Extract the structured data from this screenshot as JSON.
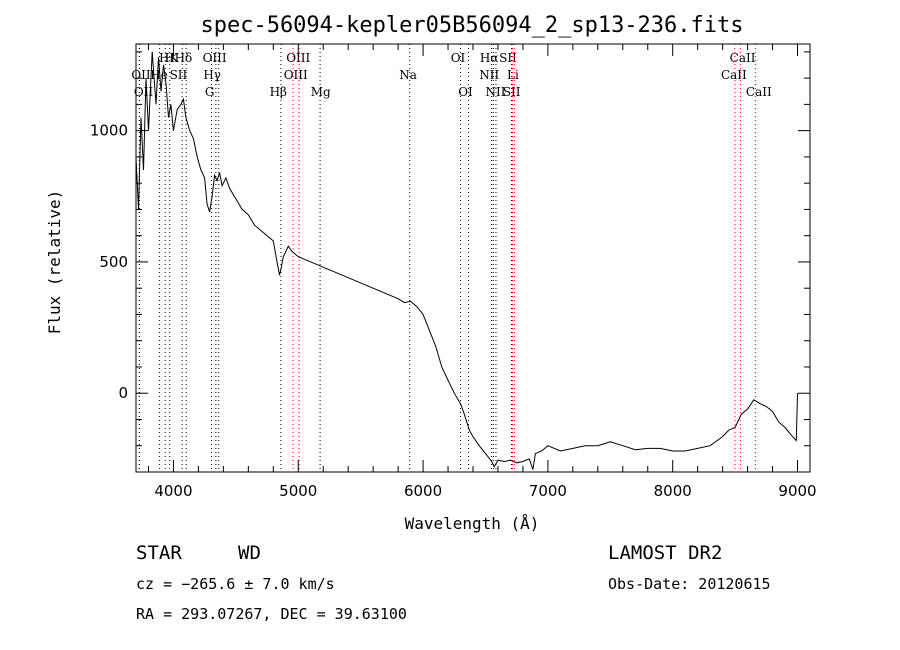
{
  "chart_data": {
    "type": "line",
    "title": "spec-56094-kepler05B56094_2_sp13-236.fits",
    "xlabel": "Wavelength (Å)",
    "ylabel": "Flux (relative)",
    "xlim": [
      3700,
      9100
    ],
    "ylim": [
      -300,
      1330
    ],
    "x_ticks": [
      4000,
      5000,
      6000,
      7000,
      8000,
      9000
    ],
    "y_ticks": [
      0,
      500,
      1000
    ],
    "grid": false,
    "series": [
      {
        "x": [
          3700,
          3720,
          3740,
          3760,
          3780,
          3800,
          3830,
          3860,
          3880,
          3900,
          3920,
          3940,
          3960,
          3980,
          4000,
          4030,
          4060,
          4080,
          4100,
          4130,
          4160,
          4190,
          4220,
          4250,
          4270,
          4290,
          4310,
          4330,
          4350,
          4370,
          4390,
          4420,
          4450,
          4500,
          4550,
          4600,
          4650,
          4700,
          4750,
          4800,
          4830,
          4850,
          4860,
          4880,
          4920,
          4950,
          5000,
          5050,
          5100,
          5150,
          5200,
          5300,
          5400,
          5500,
          5600,
          5700,
          5800,
          5850,
          5900,
          5950,
          6000,
          6050,
          6100,
          6150,
          6200,
          6250,
          6300,
          6330,
          6370,
          6400,
          6450,
          6500,
          6550,
          6570,
          6600,
          6650,
          6700,
          6750,
          6800,
          6850,
          6880,
          6900,
          6950,
          7000,
          7100,
          7200,
          7300,
          7400,
          7500,
          7600,
          7700,
          7800,
          7900,
          8000,
          8100,
          8200,
          8300,
          8400,
          8450,
          8500,
          8550,
          8600,
          8650,
          8700,
          8750,
          8800,
          8850,
          8900,
          8950,
          8990,
          9000
        ],
        "y": [
          900,
          700,
          1050,
          850,
          1200,
          1000,
          1300,
          1100,
          1280,
          1150,
          1250,
          1180,
          1050,
          1100,
          1000,
          1080,
          1100,
          1120,
          1050,
          1000,
          970,
          900,
          850,
          820,
          720,
          690,
          750,
          830,
          810,
          840,
          790,
          820,
          780,
          740,
          700,
          680,
          640,
          620,
          600,
          580,
          500,
          450,
          470,
          520,
          560,
          540,
          520,
          510,
          500,
          490,
          480,
          460,
          440,
          420,
          400,
          380,
          360,
          345,
          350,
          330,
          300,
          240,
          180,
          100,
          50,
          0,
          -40,
          -80,
          -140,
          -165,
          -200,
          -230,
          -260,
          -280,
          -255,
          -260,
          -255,
          -265,
          -260,
          -250,
          -290,
          -230,
          -220,
          -200,
          -220,
          -210,
          -200,
          -200,
          -185,
          -200,
          -215,
          -210,
          -210,
          -220,
          -220,
          -210,
          -200,
          -165,
          -140,
          -130,
          -80,
          -60,
          -25,
          -40,
          -50,
          -70,
          -110,
          -130,
          -160,
          -180,
          0
        ]
      }
    ],
    "lines": [
      {
        "label": "HK",
        "x": 3934,
        "row": 0,
        "color": "#000000",
        "label_x": 3962
      },
      {
        "label": "H",
        "x": 3970,
        "row": 0,
        "color": "#000000"
      },
      {
        "label": "Hδ",
        "x": 4102,
        "row": 0,
        "color": "#000000",
        "label_x": 4080
      },
      {
        "label": "OII",
        "x": 3727,
        "row": 1,
        "color": "#000000",
        "label_x": 3740
      },
      {
        "label": "He",
        "x": 3889,
        "row": 1,
        "color": "#000000",
        "label_x": 3885
      },
      {
        "label": "SII",
        "x": 4070,
        "row": 1,
        "color": "#000000",
        "label_x": 4040
      },
      {
        "label": "OII",
        "x": 3727,
        "row": 2,
        "color": "#000000",
        "label_x": 3760
      },
      {
        "label": "OIII",
        "x": 4363,
        "row": 0,
        "color": "#000000",
        "label_x": 4330
      },
      {
        "label": "Hγ",
        "x": 4340,
        "row": 1,
        "color": "#000000",
        "label_x": 4310
      },
      {
        "label": "G",
        "x": 4305,
        "row": 2,
        "color": "#000000",
        "label_x": 4290
      },
      {
        "label": "OIII",
        "x": 4959,
        "row": 0,
        "color": "#ff0000",
        "label_x": 5000
      },
      {
        "label": "OIII",
        "x": 5007,
        "row": 1,
        "color": "#ff0000",
        "label_x": 4980
      },
      {
        "label": "Hβ",
        "x": 4861,
        "row": 2,
        "color": "#000000",
        "label_x": 4840
      },
      {
        "label": "Mg",
        "x": 5175,
        "row": 2,
        "color": "#000000",
        "label_x": 5180
      },
      {
        "label": "Na",
        "x": 5893,
        "row": 1,
        "color": "#000000",
        "label_x": 5880
      },
      {
        "label": "OI",
        "x": 6300,
        "row": 0,
        "color": "#000000",
        "label_x": 6280
      },
      {
        "label": "OI",
        "x": 6364,
        "row": 2,
        "color": "#000000",
        "label_x": 6340
      },
      {
        "label": "Hα",
        "x": 6563,
        "row": 0,
        "color": "#000000",
        "label_x": 6530
      },
      {
        "label": "SII",
        "x": 6716,
        "row": 0,
        "color": "#ff0000",
        "label_x": 6680
      },
      {
        "label": "NII",
        "x": 6548,
        "row": 1,
        "color": "#000000",
        "label_x": 6530
      },
      {
        "label": "Li",
        "x": 6708,
        "row": 1,
        "color": "#000000",
        "label_x": 6720
      },
      {
        "label": "NII",
        "x": 6584,
        "row": 2,
        "color": "#000000",
        "label_x": 6580
      },
      {
        "label": "SII",
        "x": 6731,
        "row": 2,
        "color": "#ff0000",
        "label_x": 6710
      },
      {
        "label": "CaII",
        "x": 8542,
        "row": 0,
        "color": "#ff0000",
        "label_x": 8560
      },
      {
        "label": "CaII",
        "x": 8498,
        "row": 1,
        "color": "#ff0000",
        "label_x": 8490
      },
      {
        "label": "CaII",
        "x": 8662,
        "row": 2,
        "color": "#ff0000",
        "label_x": 8690
      }
    ]
  },
  "footer": {
    "class_label": "STAR",
    "subclass_label": "WD",
    "survey": "LAMOST DR2",
    "cz": "cz = −265.6 ± 7.0 km/s",
    "obs_date": "Obs-Date: 20120615",
    "coords": "RA = 293.07267, DEC =  39.63100"
  }
}
